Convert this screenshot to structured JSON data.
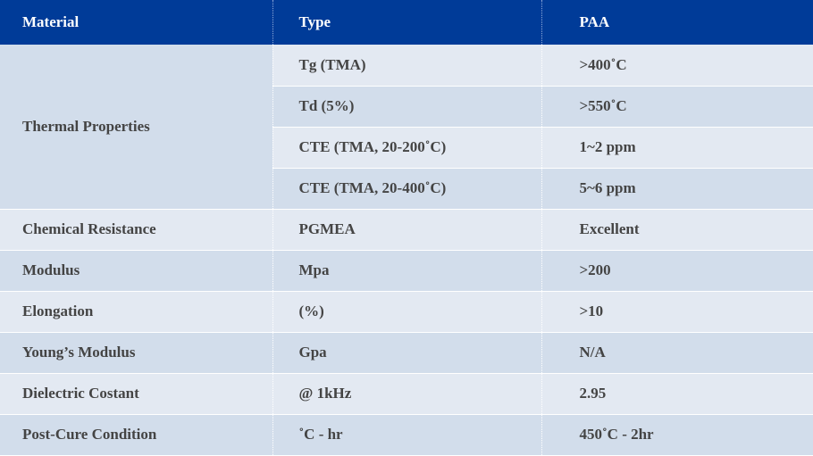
{
  "header": {
    "col1": "Material",
    "col2": "Type",
    "col3": "PAA"
  },
  "thermal": {
    "label": "Thermal Properties",
    "rows": [
      {
        "type": "Tg (TMA)",
        "value": ">400˚C"
      },
      {
        "type": "Td (5%)",
        "value": ">550˚C"
      },
      {
        "type": "CTE (TMA, 20-200˚C)",
        "value": "1~2 ppm"
      },
      {
        "type": "CTE (TMA, 20-400˚C)",
        "value": "5~6 ppm"
      }
    ]
  },
  "rows": [
    {
      "material": "Chemical Resistance",
      "type": "PGMEA",
      "value": "Excellent"
    },
    {
      "material": "Modulus",
      "type": "Mpa",
      "value": ">200"
    },
    {
      "material": "Elongation",
      "type": "(%)",
      "value": ">10"
    },
    {
      "material": "Young’s  Modulus",
      "type": "Gpa",
      "value": "N/A"
    },
    {
      "material": "Dielectric Costant",
      "type": "@ 1kHz",
      "value": "2.95"
    },
    {
      "material": "Post-Cure Condition",
      "type": "˚C - hr",
      "value": "450˚C - 2hr"
    }
  ],
  "colors": {
    "header_bg": "#003b98",
    "row_dark": "#d2ddeb",
    "row_light": "#e3e9f2"
  }
}
